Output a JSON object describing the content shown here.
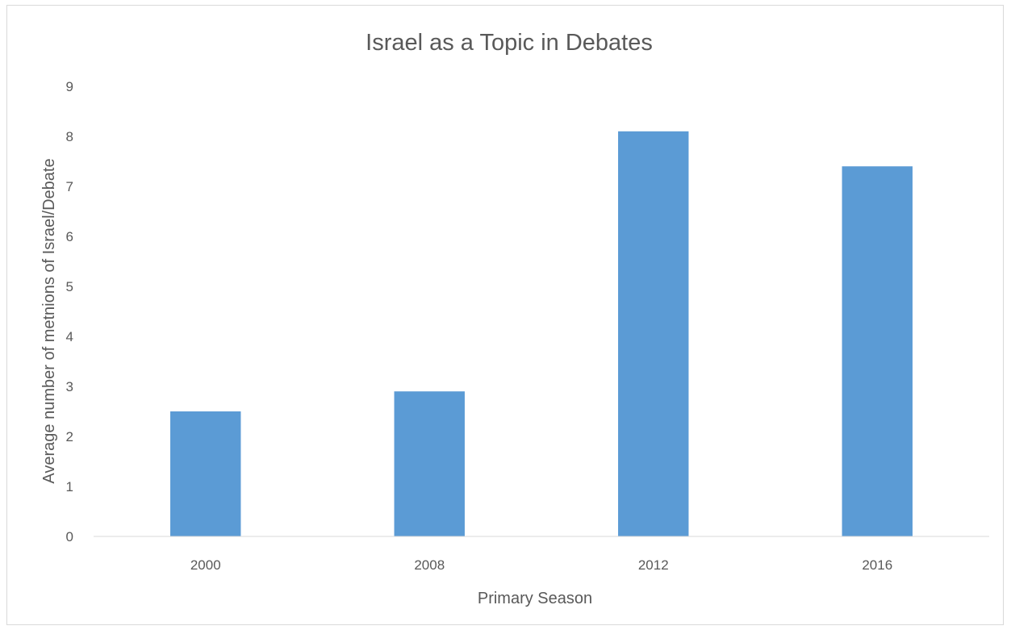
{
  "chart_data": {
    "type": "bar",
    "title": "Israel as a Topic in Debates",
    "xlabel": "Primary Season",
    "ylabel": "Average number of metnions of Israel/Debate",
    "categories": [
      "2000",
      "2008",
      "2012",
      "2016"
    ],
    "values": [
      2.5,
      2.9,
      8.1,
      7.4
    ],
    "ylim": [
      0,
      9
    ],
    "yticks": [
      "0",
      "1",
      "2",
      "3",
      "4",
      "5",
      "6",
      "7",
      "8",
      "9"
    ],
    "grid": false,
    "legend": "none",
    "colors": {
      "bar": "#5b9bd5",
      "axis": "#d9d9d9",
      "text": "#595959"
    }
  }
}
